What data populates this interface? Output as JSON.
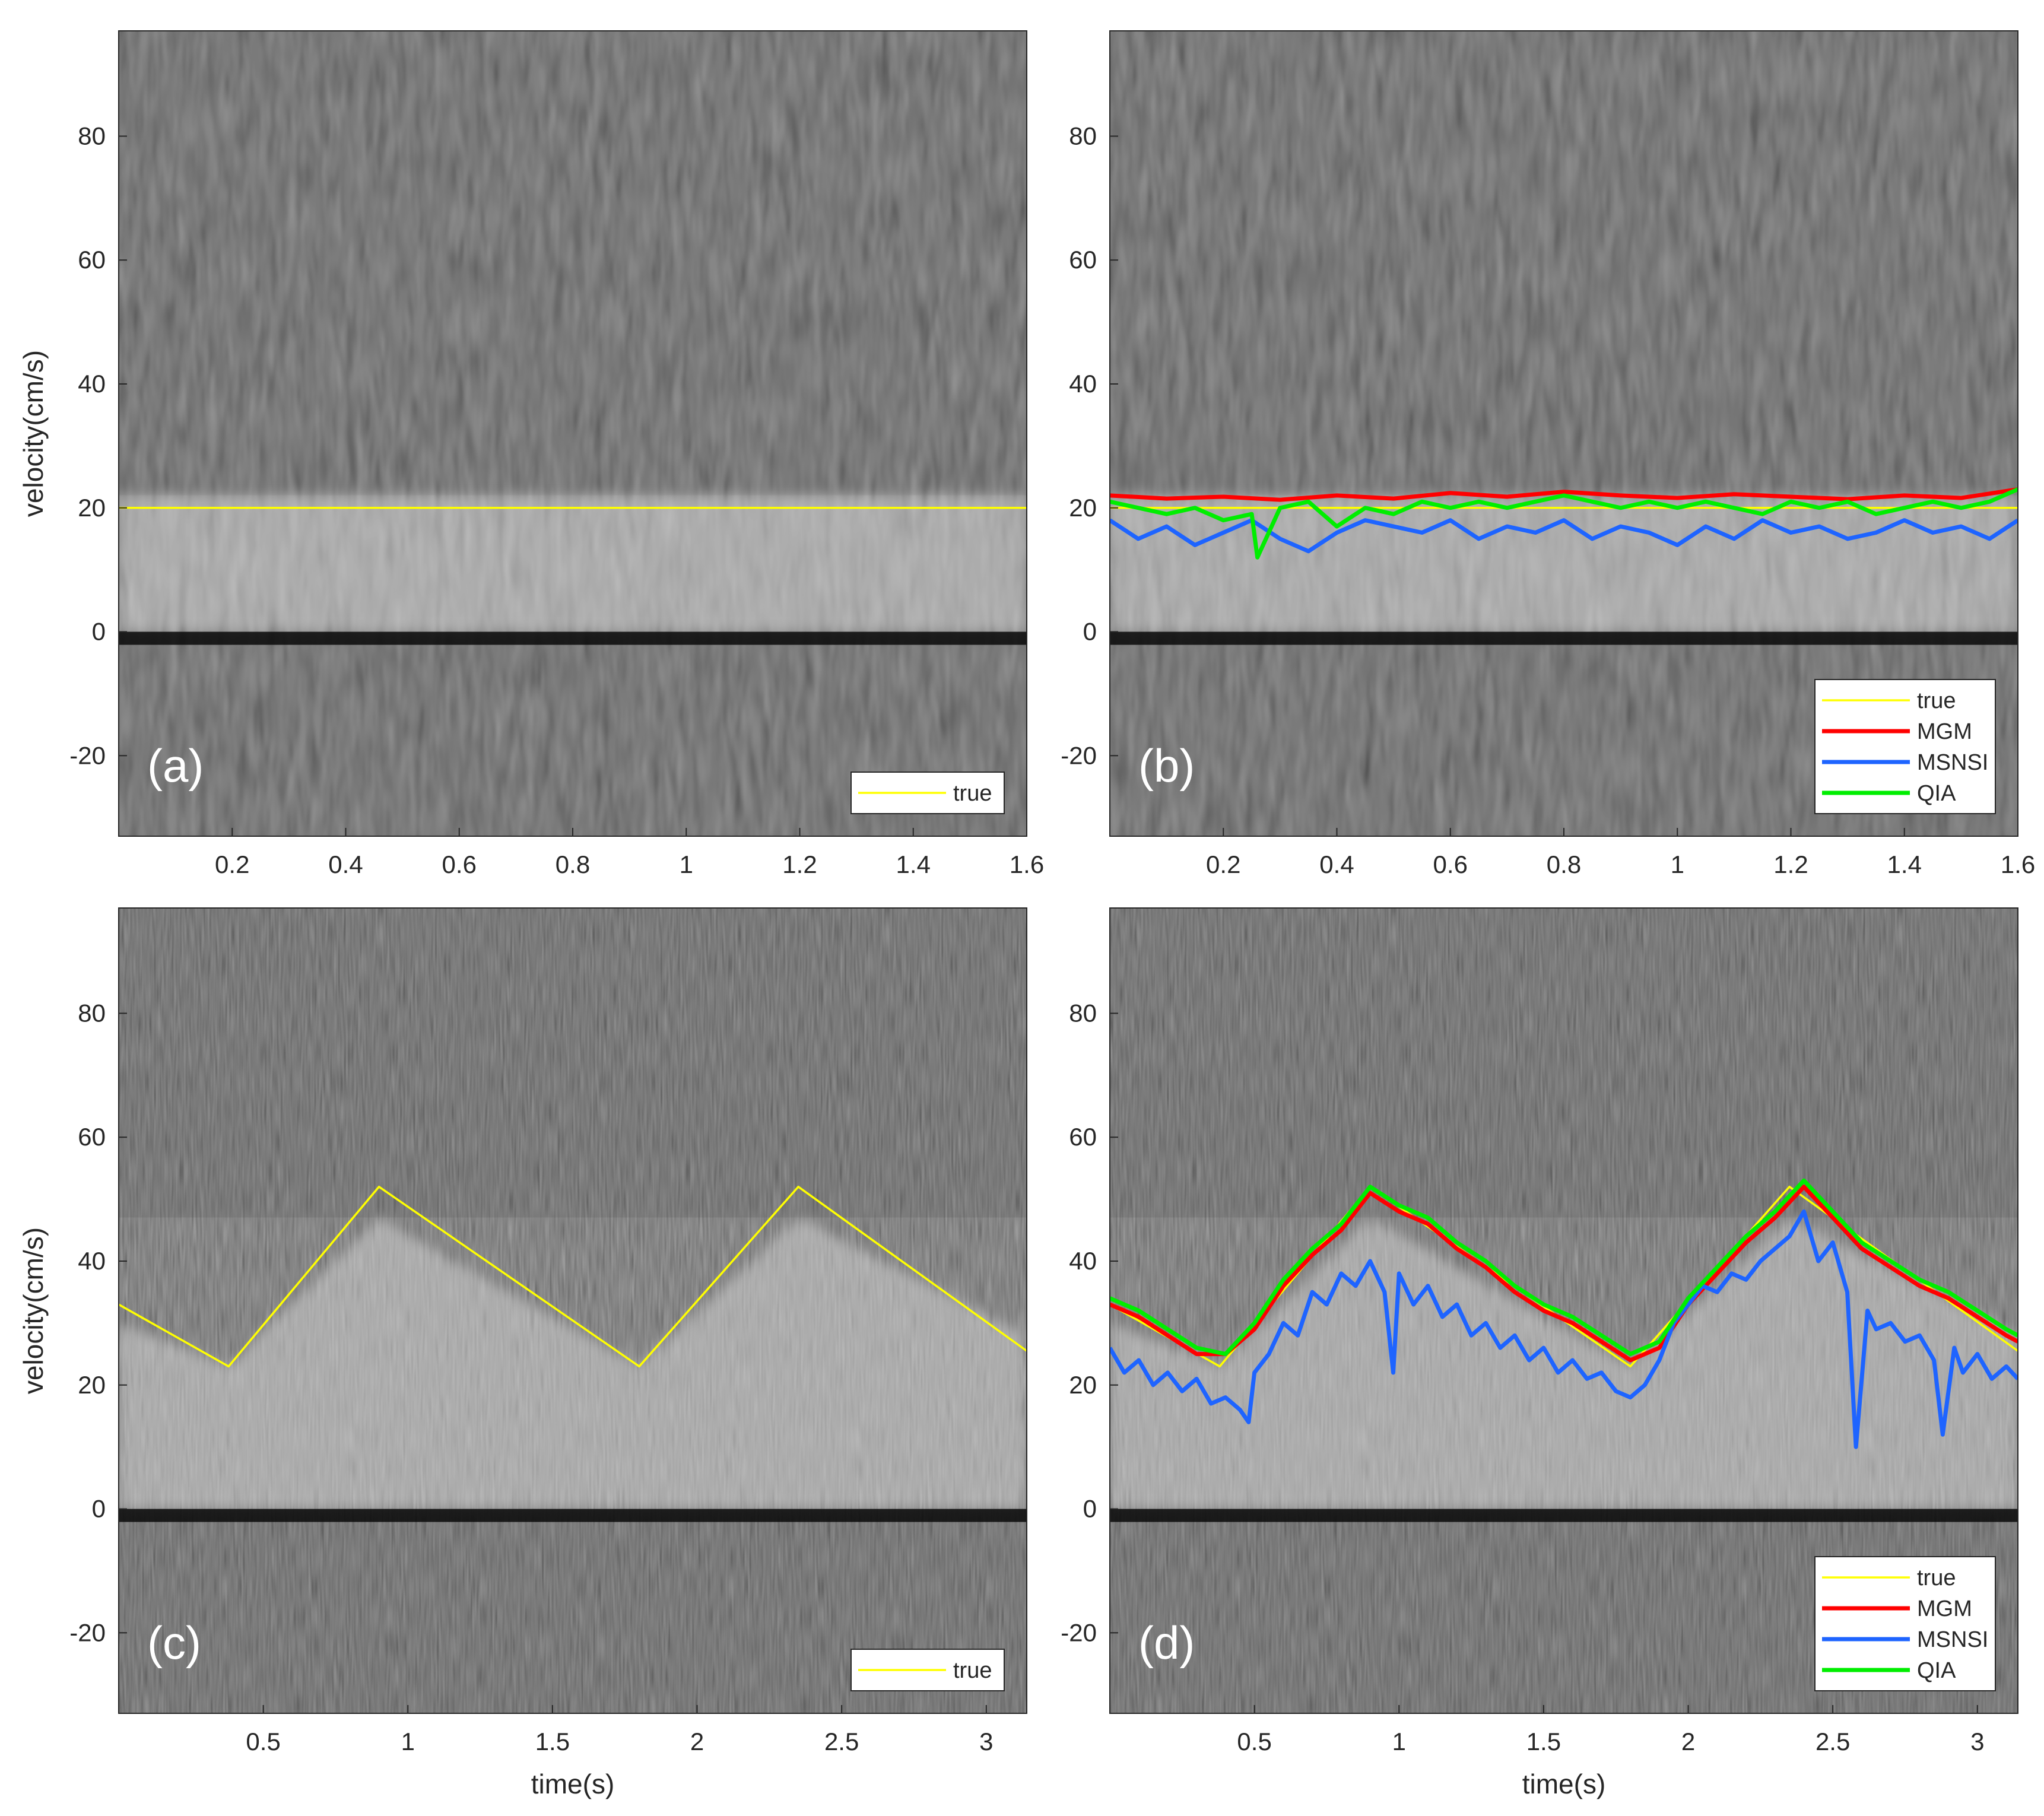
{
  "figure": {
    "colors": {
      "true": "#ffff00",
      "MGM": "#ff0000",
      "MSNSI": "#1e64ff",
      "QIA": "#00ee00",
      "background": "#2c2c2c",
      "band": "#bdbdbd"
    }
  },
  "chart_data": [
    {
      "type": "line",
      "panel_label": "(a)",
      "background": "spectrogram",
      "xlabel": "",
      "ylabel": "velocity(cm/s)",
      "xlim": [
        0.0,
        1.6
      ],
      "ylim": [
        -33,
        97
      ],
      "xticks": [
        0.2,
        0.4,
        0.6,
        0.8,
        1,
        1.2,
        1.4,
        1.6
      ],
      "yticks": [
        -20,
        0,
        20,
        40,
        60,
        80
      ],
      "legend": {
        "position": "bottom-right",
        "entries": [
          "true"
        ]
      },
      "band_upper": {
        "x": [
          0.0,
          1.6
        ],
        "y": [
          22,
          22
        ]
      },
      "series": [
        {
          "name": "true",
          "x": [
            0.0,
            1.6
          ],
          "y": [
            20,
            20
          ]
        }
      ]
    },
    {
      "type": "line",
      "panel_label": "(b)",
      "background": "spectrogram",
      "xlabel": "",
      "ylabel": "",
      "xlim": [
        0.0,
        1.6
      ],
      "ylim": [
        -33,
        97
      ],
      "xticks": [
        0.2,
        0.4,
        0.6,
        0.8,
        1,
        1.2,
        1.4,
        1.6
      ],
      "yticks": [
        -20,
        0,
        20,
        40,
        60,
        80
      ],
      "legend": {
        "position": "bottom-right",
        "entries": [
          "true",
          "MGM",
          "MSNSI",
          "QIA"
        ]
      },
      "band_upper": {
        "x": [
          0.0,
          1.6
        ],
        "y": [
          22,
          22
        ]
      },
      "series": [
        {
          "name": "true",
          "x": [
            0.0,
            1.6
          ],
          "y": [
            20,
            20
          ]
        },
        {
          "name": "MGM",
          "x": [
            0.0,
            0.1,
            0.2,
            0.3,
            0.4,
            0.5,
            0.6,
            0.7,
            0.8,
            0.9,
            1.0,
            1.1,
            1.2,
            1.3,
            1.4,
            1.5,
            1.6
          ],
          "y": [
            22.0,
            21.5,
            21.8,
            21.3,
            22.0,
            21.5,
            22.4,
            21.8,
            22.6,
            22.0,
            21.6,
            22.2,
            21.8,
            21.4,
            22.0,
            21.6,
            23.0
          ]
        },
        {
          "name": "MSNSI",
          "x": [
            0.0,
            0.05,
            0.1,
            0.15,
            0.2,
            0.25,
            0.3,
            0.35,
            0.4,
            0.45,
            0.5,
            0.55,
            0.6,
            0.65,
            0.7,
            0.75,
            0.8,
            0.85,
            0.9,
            0.95,
            1.0,
            1.05,
            1.1,
            1.15,
            1.2,
            1.25,
            1.3,
            1.35,
            1.4,
            1.45,
            1.5,
            1.55,
            1.6
          ],
          "y": [
            18,
            15,
            17,
            14,
            16,
            18,
            15,
            13,
            16,
            18,
            17,
            16,
            18,
            15,
            17,
            16,
            18,
            15,
            17,
            16,
            14,
            17,
            15,
            18,
            16,
            17,
            15,
            16,
            18,
            16,
            17,
            15,
            18
          ]
        },
        {
          "name": "QIA",
          "x": [
            0.0,
            0.05,
            0.1,
            0.15,
            0.2,
            0.25,
            0.26,
            0.3,
            0.35,
            0.4,
            0.45,
            0.5,
            0.55,
            0.6,
            0.65,
            0.7,
            0.75,
            0.8,
            0.85,
            0.9,
            0.95,
            1.0,
            1.05,
            1.1,
            1.15,
            1.2,
            1.25,
            1.3,
            1.35,
            1.4,
            1.45,
            1.5,
            1.55,
            1.6
          ],
          "y": [
            21,
            20,
            19,
            20,
            18,
            19,
            12,
            20,
            21,
            17,
            20,
            19,
            21,
            20,
            21,
            20,
            21,
            22,
            21,
            20,
            21,
            20,
            21,
            20,
            19,
            21,
            20,
            21,
            19,
            20,
            21,
            20,
            21,
            23
          ]
        }
      ]
    },
    {
      "type": "line",
      "panel_label": "(c)",
      "background": "spectrogram",
      "xlabel": "time(s)",
      "ylabel": "velocity(cm/s)",
      "xlim": [
        0.0,
        3.14
      ],
      "ylim": [
        -33,
        97
      ],
      "xticks": [
        0.5,
        1,
        1.5,
        2,
        2.5,
        3
      ],
      "yticks": [
        -20,
        0,
        20,
        40,
        60,
        80
      ],
      "legend": {
        "position": "bottom-right",
        "entries": [
          "true"
        ]
      },
      "band_upper": {
        "x": [
          0.0,
          0.38,
          0.9,
          1.8,
          2.35,
          3.14
        ],
        "y": [
          30,
          23,
          47,
          23,
          47,
          28
        ]
      },
      "series": [
        {
          "name": "true",
          "x": [
            0.0,
            0.38,
            0.9,
            1.8,
            2.35,
            3.14
          ],
          "y": [
            33,
            23,
            52,
            23,
            52,
            25.5
          ]
        }
      ]
    },
    {
      "type": "line",
      "panel_label": "(d)",
      "background": "spectrogram",
      "xlabel": "time(s)",
      "ylabel": "",
      "xlim": [
        0.0,
        3.14
      ],
      "ylim": [
        -33,
        97
      ],
      "xticks": [
        0.5,
        1,
        1.5,
        2,
        2.5,
        3
      ],
      "yticks": [
        -20,
        0,
        20,
        40,
        60,
        80
      ],
      "legend": {
        "position": "bottom-right",
        "entries": [
          "true",
          "MGM",
          "MSNSI",
          "QIA"
        ]
      },
      "band_upper": {
        "x": [
          0.0,
          0.38,
          0.9,
          1.8,
          2.35,
          3.14
        ],
        "y": [
          30,
          23,
          47,
          23,
          47,
          28
        ]
      },
      "series": [
        {
          "name": "true",
          "x": [
            0.0,
            0.38,
            0.9,
            1.8,
            2.35,
            3.14
          ],
          "y": [
            33,
            23,
            52,
            23,
            52,
            25.5
          ]
        },
        {
          "name": "MGM",
          "x": [
            0.0,
            0.1,
            0.2,
            0.3,
            0.4,
            0.5,
            0.6,
            0.7,
            0.8,
            0.9,
            1.0,
            1.1,
            1.2,
            1.3,
            1.4,
            1.5,
            1.6,
            1.7,
            1.8,
            1.9,
            2.0,
            2.1,
            2.2,
            2.3,
            2.4,
            2.5,
            2.6,
            2.7,
            2.8,
            2.9,
            3.0,
            3.1,
            3.14
          ],
          "y": [
            33,
            31,
            28,
            25,
            25,
            29,
            36,
            41,
            45,
            51,
            48,
            46,
            42,
            39,
            35,
            32,
            30,
            27,
            24,
            26,
            33,
            38,
            43,
            47,
            52,
            47,
            42,
            39,
            36,
            34,
            31,
            28,
            27
          ]
        },
        {
          "name": "MSNSI",
          "x": [
            0.0,
            0.05,
            0.1,
            0.15,
            0.2,
            0.25,
            0.3,
            0.35,
            0.4,
            0.45,
            0.48,
            0.5,
            0.55,
            0.6,
            0.65,
            0.7,
            0.75,
            0.8,
            0.85,
            0.9,
            0.95,
            0.98,
            1.0,
            1.05,
            1.1,
            1.15,
            1.2,
            1.25,
            1.3,
            1.35,
            1.4,
            1.45,
            1.5,
            1.55,
            1.6,
            1.65,
            1.7,
            1.75,
            1.8,
            1.85,
            1.9,
            1.95,
            2.0,
            2.05,
            2.1,
            2.15,
            2.2,
            2.25,
            2.3,
            2.35,
            2.4,
            2.45,
            2.5,
            2.55,
            2.58,
            2.62,
            2.65,
            2.7,
            2.75,
            2.8,
            2.85,
            2.88,
            2.92,
            2.95,
            3.0,
            3.05,
            3.1,
            3.14
          ],
          "y": [
            26,
            22,
            24,
            20,
            22,
            19,
            21,
            17,
            18,
            16,
            14,
            22,
            25,
            30,
            28,
            35,
            33,
            38,
            36,
            40,
            35,
            22,
            38,
            33,
            36,
            31,
            33,
            28,
            30,
            26,
            28,
            24,
            26,
            22,
            24,
            21,
            22,
            19,
            18,
            20,
            24,
            30,
            33,
            36,
            35,
            38,
            37,
            40,
            42,
            44,
            48,
            40,
            43,
            35,
            10,
            32,
            29,
            30,
            27,
            28,
            24,
            12,
            26,
            22,
            25,
            21,
            23,
            21
          ]
        },
        {
          "name": "QIA",
          "x": [
            0.0,
            0.1,
            0.2,
            0.3,
            0.4,
            0.5,
            0.6,
            0.7,
            0.8,
            0.9,
            1.0,
            1.1,
            1.2,
            1.3,
            1.4,
            1.5,
            1.6,
            1.7,
            1.8,
            1.9,
            2.0,
            2.1,
            2.2,
            2.3,
            2.4,
            2.5,
            2.6,
            2.7,
            2.8,
            2.9,
            3.0,
            3.1,
            3.14
          ],
          "y": [
            34,
            32,
            29,
            26,
            25,
            30,
            37,
            42,
            46,
            52,
            49,
            47,
            43,
            40,
            36,
            33,
            31,
            28,
            25,
            27,
            34,
            39,
            44,
            48,
            53,
            48,
            43,
            40,
            37,
            35,
            32,
            29,
            28
          ]
        }
      ]
    }
  ]
}
